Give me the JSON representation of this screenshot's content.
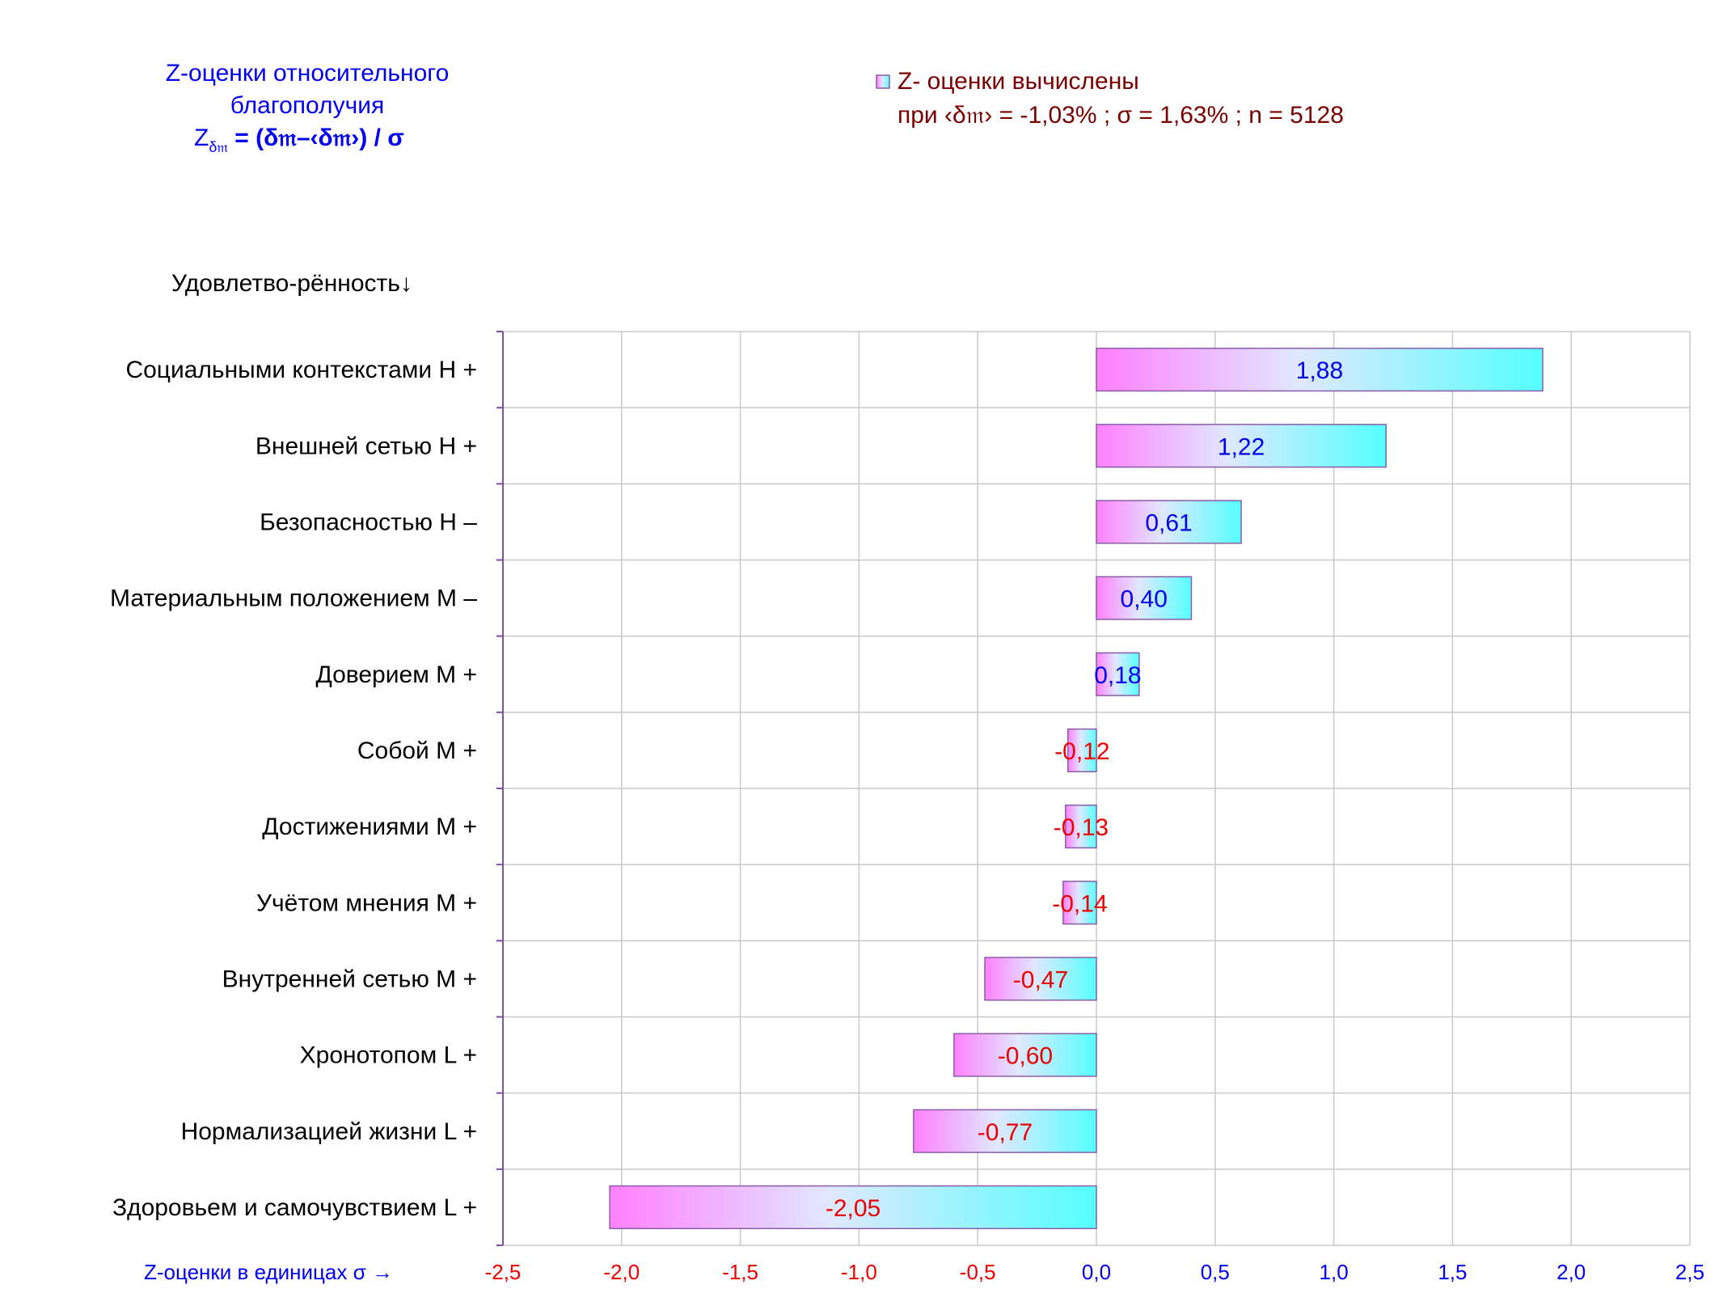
{
  "colors": {
    "title": "#0000ee",
    "legend_text": "#7a0000",
    "positive_label": "#0000ee",
    "negative_label": "#ee0000",
    "bar_left": "#ff80ff",
    "bar_right": "#55ffff",
    "bar_stroke": "#8a5ca8",
    "grid": "#c8c8c8",
    "axis": "#8050a0",
    "category_text": "#000000"
  },
  "header": {
    "title_line1": "Z-оценки  относительного",
    "title_line2": "благополучия",
    "formula_z": "Z",
    "formula_sub": "δ𝔪",
    "formula_rest": " = (δ𝔪–‹δ𝔪›)  / σ"
  },
  "legend": {
    "swatch_icon": "gradient-square-icon",
    "line1": "Z- оценки вычислены",
    "line2": "при ‹δ𝔪›  = -1,03% ; σ = 1,63% ; n = 5128"
  },
  "chart_data": {
    "type": "bar",
    "orientation": "horizontal",
    "title": "",
    "ylabel": "Удовлетво-рённость↓",
    "xlabel": "Z-оценки в единицах σ →",
    "xlim": [
      -2.5,
      2.5
    ],
    "x_ticks": [
      "-2,5",
      "-2,0",
      "-1,5",
      "-1,0",
      "-0,5",
      "0,0",
      "0,5",
      "1,0",
      "1,5",
      "2,0",
      "2,5"
    ],
    "x_tick_values": [
      -2.5,
      -2.0,
      -1.5,
      -1.0,
      -0.5,
      0.0,
      0.5,
      1.0,
      1.5,
      2.0,
      2.5
    ],
    "grid": true,
    "legend_position": "top-right",
    "series": [
      {
        "name": "Z- оценки вычислены",
        "values": [
          1.88,
          1.22,
          0.61,
          0.4,
          0.18,
          -0.12,
          -0.13,
          -0.14,
          -0.47,
          -0.6,
          -0.77,
          -2.05
        ]
      }
    ],
    "categories": [
      "Социальными контекстами  Н +",
      "Внешней сетью  Н +",
      "Безопасностью  Н –",
      "Материальным положением  М –",
      "Доверием  М +",
      "Собой  М +",
      "Достижениями  М +",
      "Учётом мнения  М +",
      "Внутренней сетью  М +",
      "Хронотопом  L +",
      "Нормализацией жизни  L +",
      "Здоровьем и самочувствием  L +"
    ],
    "data_labels": [
      "1,88",
      "1,22",
      "0,61",
      "0,40",
      "0,18",
      "-0,12",
      "-0,13",
      "-0,14",
      "-0,47",
      "-0,60",
      "-0,77",
      "-2,05"
    ]
  }
}
